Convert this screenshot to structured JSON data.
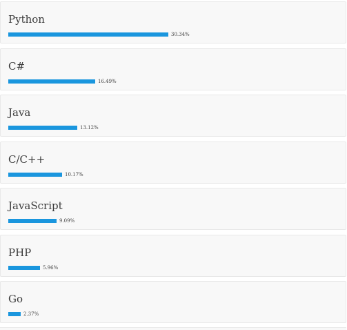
{
  "languages": [
    {
      "name": "Python",
      "percent_label": "30.34%",
      "share": 30.34
    },
    {
      "name": "C#",
      "percent_label": "16.49%",
      "share": 16.49
    },
    {
      "name": "Java",
      "percent_label": "13.12%",
      "share": 13.12
    },
    {
      "name": "C/C++",
      "percent_label": "10.17%",
      "share": 10.17
    },
    {
      "name": "JavaScript",
      "percent_label": "9.09%",
      "share": 9.09
    },
    {
      "name": "PHP",
      "percent_label": "5.96%",
      "share": 5.96
    },
    {
      "name": "Go",
      "percent_label": "2.37%",
      "share": 2.37
    }
  ],
  "bar_color": "#1a96de"
}
